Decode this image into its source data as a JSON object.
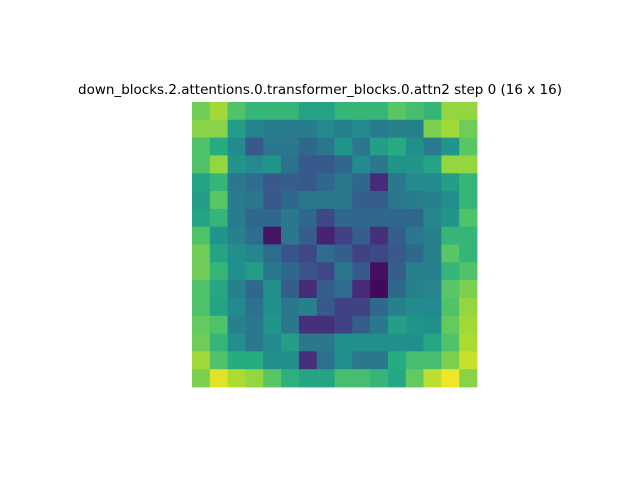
{
  "chart_data": {
    "type": "heatmap",
    "title": "down_blocks.2.attentions.0.transformer_blocks.0.attn2 step 0 (16 x 16)",
    "rows": 16,
    "cols": 16,
    "colormap": "viridis",
    "axes_visible": false,
    "vmin": 0,
    "vmax": 1,
    "values": [
      [
        0.78,
        0.86,
        0.72,
        0.66,
        0.66,
        0.66,
        0.58,
        0.58,
        0.66,
        0.66,
        0.66,
        0.74,
        0.7,
        0.66,
        0.84,
        0.84
      ],
      [
        0.82,
        0.82,
        0.55,
        0.45,
        0.42,
        0.42,
        0.42,
        0.48,
        0.44,
        0.48,
        0.42,
        0.44,
        0.44,
        0.8,
        0.86,
        0.78
      ],
      [
        0.72,
        0.62,
        0.48,
        0.28,
        0.4,
        0.4,
        0.34,
        0.4,
        0.52,
        0.4,
        0.56,
        0.62,
        0.5,
        0.42,
        0.52,
        0.74
      ],
      [
        0.72,
        0.84,
        0.52,
        0.48,
        0.52,
        0.38,
        0.28,
        0.28,
        0.34,
        0.48,
        0.4,
        0.52,
        0.52,
        0.58,
        0.84,
        0.84
      ],
      [
        0.58,
        0.66,
        0.4,
        0.36,
        0.28,
        0.3,
        0.28,
        0.34,
        0.4,
        0.34,
        0.12,
        0.4,
        0.48,
        0.48,
        0.56,
        0.66
      ],
      [
        0.55,
        0.74,
        0.42,
        0.4,
        0.28,
        0.34,
        0.4,
        0.4,
        0.4,
        0.3,
        0.3,
        0.4,
        0.42,
        0.44,
        0.5,
        0.66
      ],
      [
        0.58,
        0.66,
        0.42,
        0.34,
        0.34,
        0.4,
        0.34,
        0.22,
        0.34,
        0.34,
        0.34,
        0.34,
        0.34,
        0.46,
        0.52,
        0.72
      ],
      [
        0.72,
        0.52,
        0.44,
        0.36,
        0.06,
        0.4,
        0.3,
        0.1,
        0.2,
        0.3,
        0.14,
        0.3,
        0.4,
        0.44,
        0.66,
        0.66
      ],
      [
        0.78,
        0.58,
        0.5,
        0.46,
        0.36,
        0.26,
        0.22,
        0.36,
        0.3,
        0.2,
        0.22,
        0.28,
        0.34,
        0.44,
        0.74,
        0.66
      ],
      [
        0.78,
        0.66,
        0.5,
        0.56,
        0.4,
        0.34,
        0.26,
        0.22,
        0.4,
        0.28,
        0.04,
        0.3,
        0.44,
        0.44,
        0.66,
        0.72
      ],
      [
        0.72,
        0.6,
        0.44,
        0.34,
        0.5,
        0.3,
        0.12,
        0.3,
        0.36,
        0.12,
        0.02,
        0.34,
        0.44,
        0.46,
        0.74,
        0.8
      ],
      [
        0.72,
        0.58,
        0.48,
        0.38,
        0.5,
        0.4,
        0.44,
        0.28,
        0.2,
        0.2,
        0.34,
        0.44,
        0.48,
        0.48,
        0.72,
        0.84
      ],
      [
        0.76,
        0.72,
        0.44,
        0.4,
        0.52,
        0.4,
        0.14,
        0.14,
        0.2,
        0.3,
        0.4,
        0.56,
        0.52,
        0.5,
        0.76,
        0.86
      ],
      [
        0.78,
        0.66,
        0.5,
        0.4,
        0.48,
        0.56,
        0.4,
        0.4,
        0.5,
        0.5,
        0.5,
        0.5,
        0.5,
        0.6,
        0.72,
        0.88
      ],
      [
        0.86,
        0.72,
        0.62,
        0.62,
        0.5,
        0.5,
        0.14,
        0.38,
        0.5,
        0.4,
        0.4,
        0.62,
        0.7,
        0.7,
        0.8,
        0.92
      ],
      [
        0.8,
        0.96,
        0.88,
        0.84,
        0.74,
        0.64,
        0.58,
        0.58,
        0.7,
        0.7,
        0.66,
        0.6,
        0.76,
        0.9,
        0.98,
        0.82
      ]
    ]
  }
}
